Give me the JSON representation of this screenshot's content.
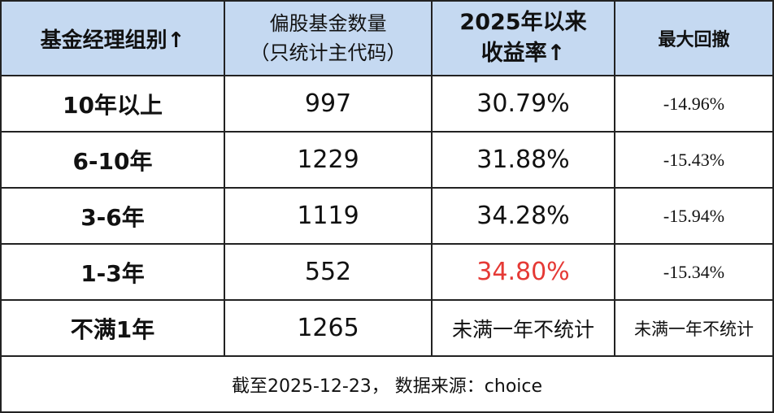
{
  "table": {
    "headers": [
      {
        "lines": [
          "基金经理组别↑"
        ]
      },
      {
        "lines": [
          "偏股基金数量",
          "（只统计主代码）"
        ]
      },
      {
        "lines": [
          "2025年以来",
          "收益率↑"
        ]
      },
      {
        "lines": [
          "最大回撤"
        ]
      }
    ],
    "rows": [
      {
        "group": "10年以上",
        "count": "997",
        "return": "30.79%",
        "drawdown": "-14.96%"
      },
      {
        "group": "6-10年",
        "count": "1229",
        "return": "31.88%",
        "drawdown": "-15.43%"
      },
      {
        "group": "3-6年",
        "count": "1119",
        "return": "34.28%",
        "drawdown": "-15.94%"
      },
      {
        "group": "1-3年",
        "count": "552",
        "return": "34.80%",
        "drawdown": "-15.34%"
      },
      {
        "group": "不满1年",
        "count": "1265",
        "return": "未满一年不统计",
        "drawdown": "未满一年不统计"
      }
    ],
    "highlight_color": "#e53935",
    "header_background": "#c5d9f1"
  },
  "footer": {
    "source_note": "截至2025-12-23， 数据来源：choice"
  }
}
